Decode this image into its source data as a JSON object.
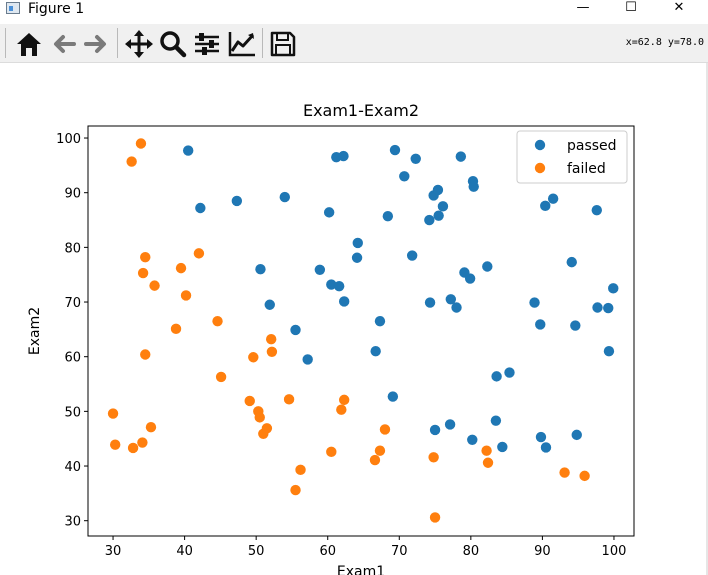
{
  "window": {
    "title": "Figure 1",
    "controls": {
      "minimize": "—",
      "maximize": "☐",
      "close": "✕"
    }
  },
  "toolbar": {
    "buttons": [
      "home-icon",
      "back-icon",
      "forward-icon",
      "pan-icon",
      "zoom-icon",
      "configure-subplots-icon",
      "edit-axis-icon",
      "save-icon"
    ],
    "coordinates": "x=62.8 y=78.0"
  },
  "chart_data": {
    "type": "scatter",
    "title": "Exam1-Exam2",
    "xlabel": "Exam1",
    "ylabel": "Exam2",
    "xlim": [
      26.5,
      102.8
    ],
    "ylim": [
      27.2,
      102.2
    ],
    "xticks": [
      30,
      40,
      50,
      60,
      70,
      80,
      90,
      100
    ],
    "yticks": [
      30,
      40,
      50,
      60,
      70,
      80,
      90,
      100
    ],
    "legend_position": "top-right",
    "series": [
      {
        "name": "passed",
        "color": "#1f77b4",
        "points": [
          [
            40.5,
            97.7
          ],
          [
            42.2,
            87.2
          ],
          [
            47.3,
            88.5
          ],
          [
            50.6,
            76.0
          ],
          [
            51.9,
            69.5
          ],
          [
            54.0,
            89.2
          ],
          [
            55.5,
            64.9
          ],
          [
            57.2,
            59.5
          ],
          [
            58.9,
            75.9
          ],
          [
            60.2,
            86.4
          ],
          [
            60.5,
            73.2
          ],
          [
            61.2,
            96.5
          ],
          [
            61.6,
            72.9
          ],
          [
            62.2,
            96.7
          ],
          [
            62.3,
            70.1
          ],
          [
            64.1,
            78.1
          ],
          [
            64.2,
            80.8
          ],
          [
            66.7,
            61.0
          ],
          [
            67.3,
            66.5
          ],
          [
            68.4,
            85.7
          ],
          [
            69.1,
            52.7
          ],
          [
            69.4,
            97.8
          ],
          [
            70.7,
            93.0
          ],
          [
            71.8,
            78.5
          ],
          [
            72.3,
            96.2
          ],
          [
            74.2,
            85.0
          ],
          [
            74.3,
            69.9
          ],
          [
            74.8,
            89.5
          ],
          [
            75.0,
            46.6
          ],
          [
            75.4,
            90.5
          ],
          [
            75.5,
            85.8
          ],
          [
            76.1,
            87.5
          ],
          [
            77.1,
            47.6
          ],
          [
            77.2,
            70.5
          ],
          [
            78.0,
            69.0
          ],
          [
            78.6,
            96.6
          ],
          [
            79.1,
            75.4
          ],
          [
            79.9,
            74.3
          ],
          [
            80.2,
            44.8
          ],
          [
            80.3,
            92.1
          ],
          [
            80.4,
            91.1
          ],
          [
            82.3,
            76.5
          ],
          [
            83.5,
            48.3
          ],
          [
            83.6,
            56.4
          ],
          [
            84.4,
            43.5
          ],
          [
            85.4,
            57.1
          ],
          [
            88.9,
            69.9
          ],
          [
            89.7,
            65.9
          ],
          [
            89.8,
            45.3
          ],
          [
            90.4,
            87.6
          ],
          [
            90.5,
            43.4
          ],
          [
            91.5,
            88.9
          ],
          [
            94.1,
            77.3
          ],
          [
            94.6,
            65.7
          ],
          [
            94.8,
            45.7
          ],
          [
            97.6,
            86.8
          ],
          [
            97.7,
            69.0
          ],
          [
            99.2,
            68.9
          ],
          [
            99.3,
            61.0
          ],
          [
            99.9,
            72.5
          ]
        ]
      },
      {
        "name": "failed",
        "color": "#ff7f0e",
        "points": [
          [
            30.0,
            49.6
          ],
          [
            30.3,
            43.9
          ],
          [
            32.6,
            95.7
          ],
          [
            32.8,
            43.3
          ],
          [
            33.9,
            99.0
          ],
          [
            34.1,
            44.3
          ],
          [
            34.2,
            75.3
          ],
          [
            34.5,
            60.4
          ],
          [
            34.5,
            78.2
          ],
          [
            35.3,
            47.1
          ],
          [
            35.8,
            73.0
          ],
          [
            38.8,
            65.1
          ],
          [
            39.5,
            76.2
          ],
          [
            40.2,
            71.2
          ],
          [
            42.0,
            78.9
          ],
          [
            44.6,
            66.5
          ],
          [
            45.1,
            56.3
          ],
          [
            49.1,
            51.9
          ],
          [
            49.6,
            59.9
          ],
          [
            50.3,
            50.0
          ],
          [
            50.5,
            48.9
          ],
          [
            51.0,
            45.9
          ],
          [
            51.5,
            46.9
          ],
          [
            52.1,
            63.2
          ],
          [
            52.2,
            60.9
          ],
          [
            54.6,
            52.2
          ],
          [
            55.5,
            35.6
          ],
          [
            56.2,
            39.3
          ],
          [
            60.5,
            42.6
          ],
          [
            61.9,
            50.3
          ],
          [
            62.3,
            52.1
          ],
          [
            66.6,
            41.1
          ],
          [
            67.3,
            42.8
          ],
          [
            68.0,
            46.7
          ],
          [
            74.8,
            41.6
          ],
          [
            75.0,
            30.6
          ],
          [
            82.2,
            42.8
          ],
          [
            82.4,
            40.6
          ],
          [
            93.1,
            38.8
          ],
          [
            95.9,
            38.2
          ]
        ]
      }
    ]
  }
}
